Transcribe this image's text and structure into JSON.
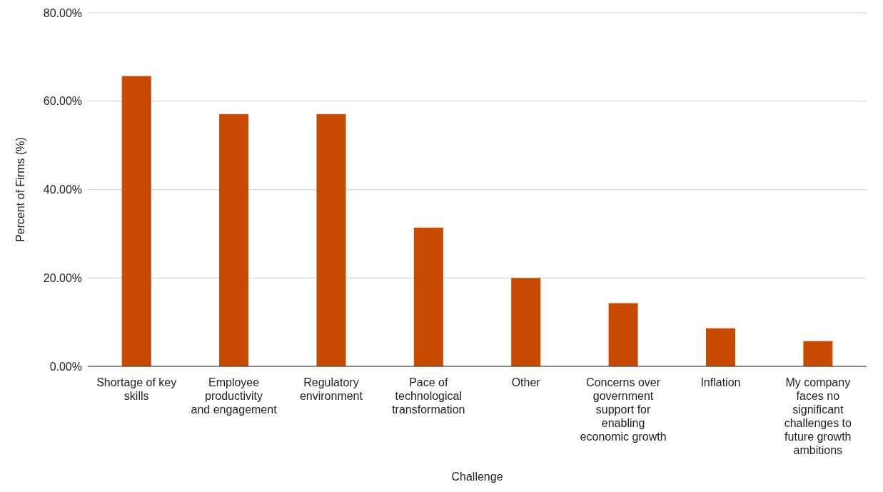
{
  "chart_data": {
    "type": "bar",
    "xlabel": "Challenge",
    "ylabel": "Percent of Firms (%)",
    "categories": [
      "Shortage of key skills",
      "Employee productivity and engagement",
      "Regulatory environment",
      "Pace of technological transformation",
      "Other",
      "Concerns over government support for enabling economic growth",
      "Inflation",
      "My company faces no significant challenges to future growth ambitions"
    ],
    "values": [
      65.7,
      57.1,
      57.1,
      31.4,
      20.0,
      14.3,
      8.6,
      5.7
    ],
    "color": "#c84a00",
    "ylim": [
      0,
      80
    ],
    "yticks": [
      {
        "value": 0,
        "label": "0.00%"
      },
      {
        "value": 20,
        "label": "20.00%"
      },
      {
        "value": 40,
        "label": "40.00%"
      },
      {
        "value": 60,
        "label": "60.00%"
      },
      {
        "value": 80,
        "label": "80.00%"
      }
    ],
    "grid": "y",
    "legend": false
  }
}
